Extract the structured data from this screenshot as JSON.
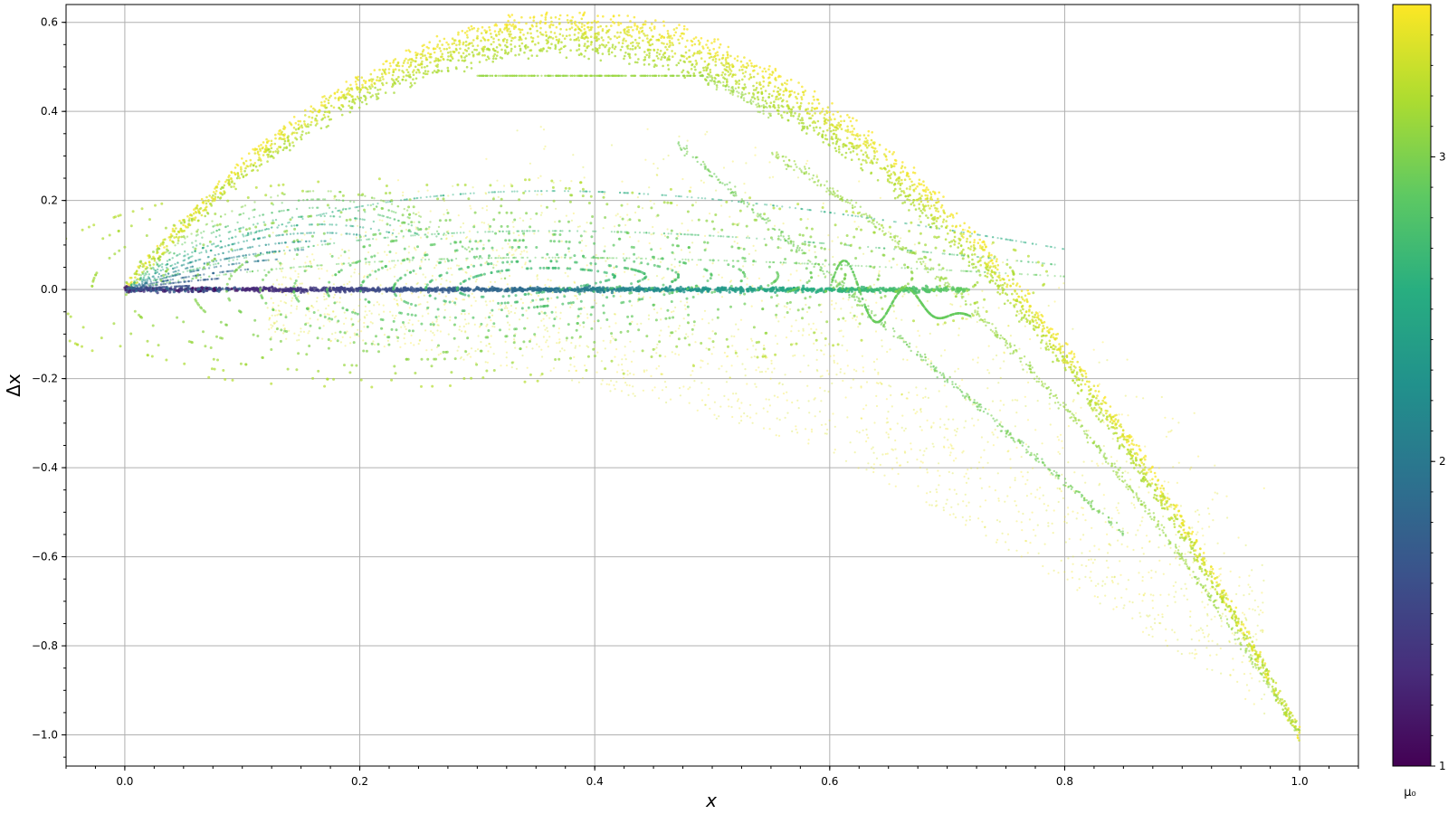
{
  "chart_data": {
    "type": "scatter",
    "title": "",
    "xlabel": "x",
    "ylabel": "Δx",
    "xlim": [
      -0.05,
      1.05
    ],
    "ylim": [
      -1.07,
      0.64
    ],
    "xticks": [
      0.0,
      0.2,
      0.4,
      0.6,
      0.8,
      1.0
    ],
    "xtick_labels": [
      "0.0",
      "0.2",
      "0.4",
      "0.6",
      "0.8",
      "1.0"
    ],
    "yticks": [
      0.6,
      0.4,
      0.2,
      0.0,
      -0.2,
      -0.4,
      -0.6,
      -0.8,
      -1.0
    ],
    "ytick_labels": [
      "0.6",
      "0.4",
      "0.2",
      "0.0",
      "−0.2",
      "−0.4",
      "−0.6",
      "−0.8",
      "−1.0"
    ],
    "grid": true,
    "colorbar": {
      "label": "μ₀",
      "range": [
        1,
        3.5
      ],
      "ticks": [
        1,
        2,
        3
      ],
      "tick_labels": [
        "1",
        "2",
        "3"
      ],
      "colormap": "viridis"
    },
    "description_of_series": [
      {
        "name": "upper parabola band",
        "mu_range": [
          3.2,
          3.5
        ],
        "x": [
          0,
          1
        ],
        "relation": "dx ≈ mu*x*(1-x) - x"
      },
      {
        "name": "zero line",
        "mu_range": [
          1,
          2.9
        ],
        "x": [
          0,
          0.72
        ],
        "y": 0
      },
      {
        "name": "fixed-point spirals",
        "mu_range": [
          2.6,
          3.1
        ],
        "center": [
          0.35,
          0.02
        ]
      },
      {
        "name": "diffuse chaotic cloud",
        "mu_range": [
          3.3,
          3.5
        ],
        "x": [
          0.15,
          0.95
        ],
        "y": [
          -0.85,
          0.45
        ]
      }
    ]
  }
}
